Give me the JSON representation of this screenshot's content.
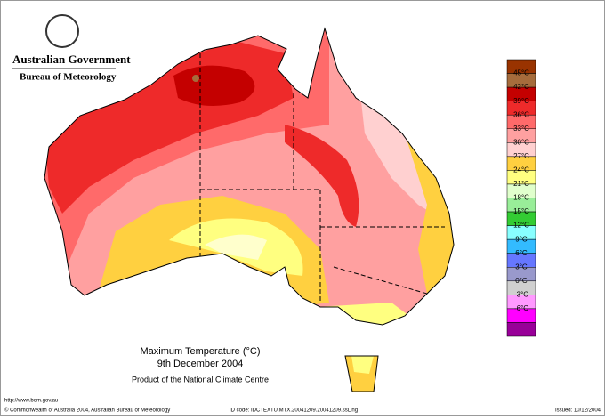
{
  "header": {
    "agency": "Australian Government",
    "bureau": "Bureau of Meteorology"
  },
  "legend": {
    "labels": [
      "45°C",
      "42°C",
      "39°C",
      "36°C",
      "33°C",
      "30°C",
      "27°C",
      "24°C",
      "21°C",
      "18°C",
      "15°C",
      "12°C",
      "9°C",
      "6°C",
      "3°C",
      "0°C",
      "-3°C",
      "-6°C"
    ],
    "swatch_colors": [
      "#993300",
      "#a66c3c",
      "#c40000",
      "#ee2a2a",
      "#ff6a6a",
      "#ffa0a0",
      "#ffd0d0",
      "#ffd040",
      "#ffff80",
      "#e0ffcc",
      "#99ee99",
      "#33cc33",
      "#88ffff",
      "#33bbff",
      "#6677ff",
      "#9999cc",
      "#d0d0d0",
      "#ff99ff",
      "#ff00ff",
      "#990099"
    ]
  },
  "map_title": {
    "line1": "Maximum Temperature (°C)",
    "line2": "9th December 2004",
    "credit": "Product of the National Climate Centre"
  },
  "footer": {
    "url": "http://www.bom.gov.au",
    "copyright": "© Commonwealth of Australia 2004, Australian Bureau of Meteorology",
    "id_code": "ID code: IDCTEXTU.MTX.20041209.20041209.ssLing",
    "issued": "Issued: 10/12/2004"
  }
}
